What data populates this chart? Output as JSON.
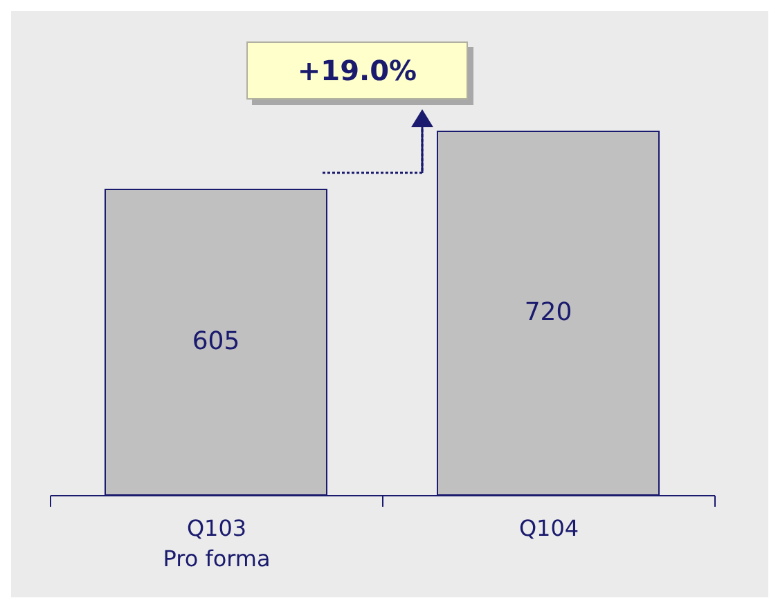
{
  "chart_data": {
    "type": "bar",
    "categories": [
      "Q103\nPro forma",
      "Q104"
    ],
    "values": [
      605,
      720
    ],
    "color": "#c0c0c0",
    "data_labels": true,
    "grid": false,
    "annotations": [
      "+19.0%"
    ]
  }
}
